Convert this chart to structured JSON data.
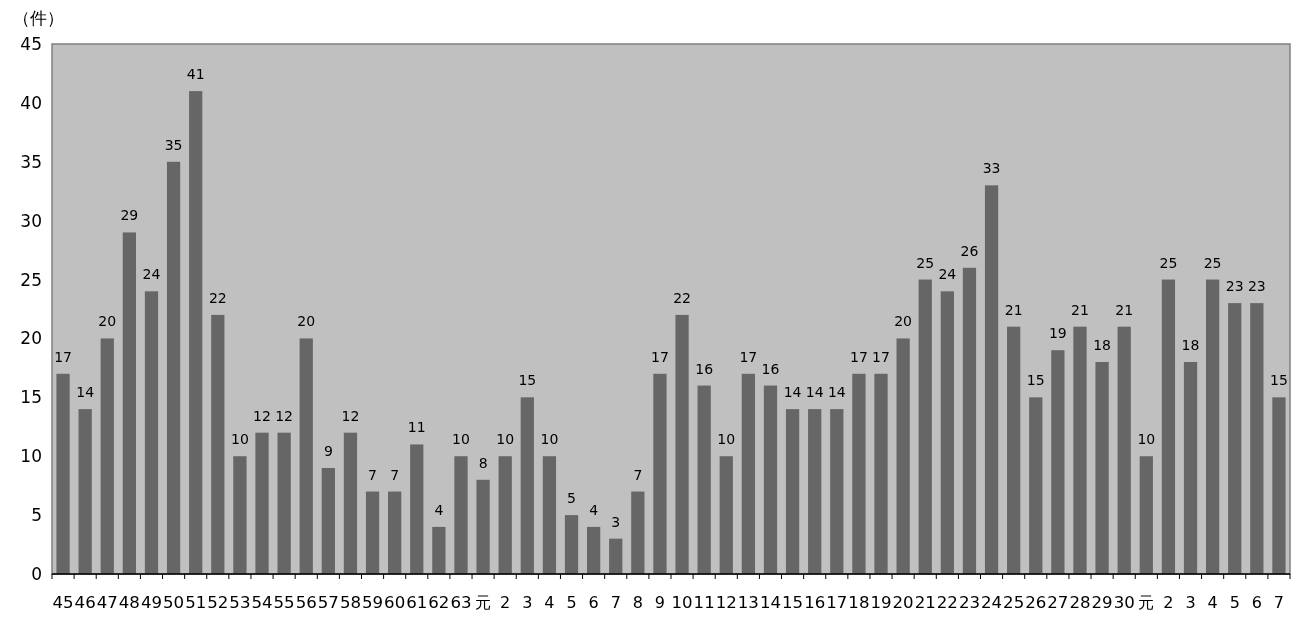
{
  "chart_data": {
    "type": "bar",
    "ylabel": "（件）",
    "categories": [
      "45",
      "46",
      "47",
      "48",
      "49",
      "50",
      "51",
      "52",
      "53",
      "54",
      "55",
      "56",
      "57",
      "58",
      "59",
      "60",
      "61",
      "62",
      "63",
      "元",
      "2",
      "3",
      "4",
      "5",
      "6",
      "7",
      "8",
      "9",
      "10",
      "11",
      "12",
      "13",
      "14",
      "15",
      "16",
      "17",
      "18",
      "19",
      "20",
      "21",
      "22",
      "23",
      "24",
      "25",
      "26",
      "27",
      "28",
      "29",
      "30",
      "元",
      "2",
      "3",
      "4",
      "5",
      "6",
      "7"
    ],
    "values": [
      17,
      14,
      20,
      29,
      24,
      35,
      41,
      22,
      10,
      12,
      12,
      20,
      9,
      12,
      7,
      7,
      11,
      4,
      10,
      8,
      10,
      15,
      10,
      5,
      4,
      3,
      7,
      17,
      22,
      16,
      10,
      17,
      16,
      14,
      14,
      14,
      17,
      17,
      20,
      25,
      24,
      26,
      33,
      21,
      15,
      19,
      21,
      18,
      21,
      10,
      25,
      18,
      25,
      23,
      23,
      15
    ],
    "color": "#666666",
    "ylim": [
      0,
      45
    ],
    "yticks": [
      0,
      5,
      10,
      15,
      20,
      25,
      30,
      35,
      40,
      45
    ],
    "data_labels": true
  }
}
